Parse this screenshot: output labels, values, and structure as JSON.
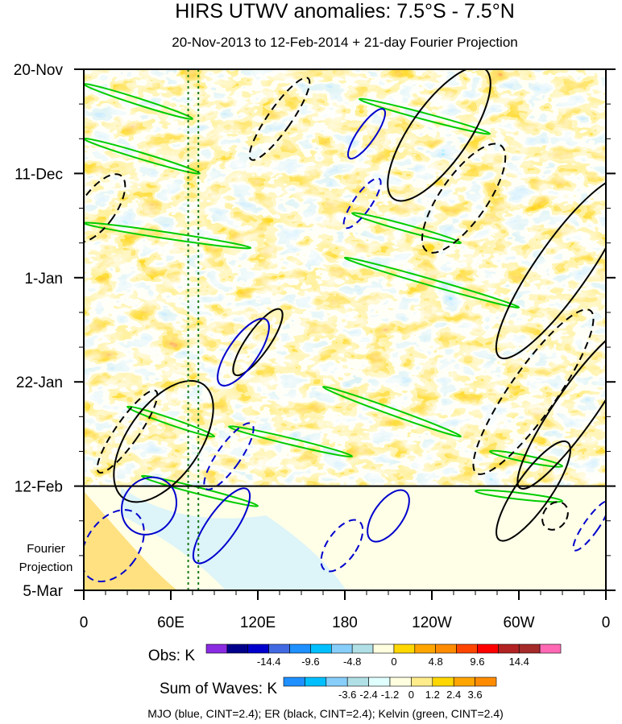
{
  "chart_data": {
    "type": "heatmap",
    "title": "HIRS UTWV anomalies: 7.5°S - 7.5°N",
    "subtitle": "20-Nov-2013 to 12-Feb-2014 + 21-day Fourier Projection",
    "x_tick_labels": [
      "0",
      "60E",
      "120E",
      "180",
      "120W",
      "60W",
      "0"
    ],
    "x_ticks_deg": [
      0,
      60,
      120,
      180,
      240,
      300,
      360
    ],
    "xlim_deg": [
      0,
      360
    ],
    "y_tick_labels": [
      "20-Nov",
      "11-Dec",
      "1-Jan",
      "22-Jan",
      "12-Feb",
      "5-Mar"
    ],
    "y_ticks_day": [
      0,
      21,
      42,
      63,
      84,
      105
    ],
    "ylim_day": [
      0,
      105
    ],
    "observation_end_day": 84,
    "projection_label_line1": "Fourier",
    "projection_label_line2": "Projection",
    "reference_longitudes_deg": [
      72,
      79
    ],
    "obs_colorbar": {
      "label": "Obs: K",
      "tick_labels": [
        "-14.4",
        "-9.6",
        "-4.8",
        "0",
        "4.8",
        "9.6",
        "14.4"
      ],
      "colors": [
        "#8a2be2",
        "#00008b",
        "#0000cd",
        "#4169e1",
        "#1e90ff",
        "#00bfff",
        "#87cefa",
        "#b0e0e6",
        "#ffffe0",
        "#ffd700",
        "#ffa500",
        "#ff8c00",
        "#ff4500",
        "#ff0000",
        "#b22222",
        "#a52a2a",
        "#ff69b4"
      ]
    },
    "waves_colorbar": {
      "label": "Sum of Waves: K",
      "tick_labels": [
        "-3.6",
        "-2.4",
        "-1.2",
        "0",
        "1.2",
        "2.4",
        "3.6"
      ],
      "colors": [
        "#1e90ff",
        "#00bfff",
        "#87cefa",
        "#b0e0e6",
        "#e0ffff",
        "#ffffe0",
        "#ffec8b",
        "#ffd700",
        "#ffa500",
        "#ff8c00"
      ]
    },
    "footer": "MJO (blue, CINT=2.4); ER (black, CINT=2.4); Kelvin (green, CINT=2.4)",
    "wave_colors": {
      "mjo": "#0000cd",
      "er": "#000000",
      "kelvin": "#00cc00"
    },
    "kelvin_bands": [
      {
        "lon": [
          0,
          75
        ],
        "day": [
          3,
          10
        ]
      },
      {
        "lon": [
          0,
          80
        ],
        "day": [
          14,
          21
        ]
      },
      {
        "lon": [
          0,
          115
        ],
        "day": [
          31,
          36
        ]
      },
      {
        "lon": [
          190,
          280
        ],
        "day": [
          6,
          13
        ]
      },
      {
        "lon": [
          185,
          260
        ],
        "day": [
          29,
          35
        ]
      },
      {
        "lon": [
          180,
          300
        ],
        "day": [
          38,
          48
        ]
      },
      {
        "lon": [
          165,
          260
        ],
        "day": [
          64,
          74
        ]
      },
      {
        "lon": [
          100,
          185
        ],
        "day": [
          72,
          78
        ]
      },
      {
        "lon": [
          30,
          90
        ],
        "day": [
          68,
          74
        ]
      },
      {
        "lon": [
          280,
          330
        ],
        "day": [
          77,
          80
        ]
      },
      {
        "lon": [
          40,
          120
        ],
        "day": [
          82,
          88
        ]
      },
      {
        "lon": [
          270,
          330
        ],
        "day": [
          85,
          87
        ]
      }
    ],
    "er_ellipses": [
      {
        "lon": 245,
        "day": 13,
        "rlon": 20,
        "rday": 16,
        "dashed": false
      },
      {
        "lon": 262,
        "day": 26,
        "rlon": 16,
        "rday": 13,
        "dashed": true
      },
      {
        "lon": 330,
        "day": 40,
        "rlon": 18,
        "rday": 22,
        "dashed": false
      },
      {
        "lon": 310,
        "day": 65,
        "rlon": 16,
        "rday": 20,
        "dashed": true
      },
      {
        "lon": 340,
        "day": 68,
        "rlon": 14,
        "rday": 20,
        "dashed": false
      },
      {
        "lon": 310,
        "day": 85,
        "rlon": 12,
        "rday": 12,
        "dashed": false
      },
      {
        "lon": 55,
        "day": 75,
        "rlon": 25,
        "rday": 14,
        "dashed": false
      },
      {
        "lon": 30,
        "day": 73,
        "rlon": 8,
        "rday": 10,
        "dashed": true
      },
      {
        "lon": 120,
        "day": 55,
        "rlon": 8,
        "rday": 8,
        "dashed": false
      },
      {
        "lon": 135,
        "day": 10,
        "rlon": 8,
        "rday": 10,
        "dashed": true
      },
      {
        "lon": 10,
        "day": 28,
        "rlon": 12,
        "rday": 8,
        "dashed": true
      },
      {
        "lon": 325,
        "day": 90,
        "rlon": 8,
        "rday": 3,
        "dashed": true
      }
    ],
    "mjo_ellipses": [
      {
        "lon": 45,
        "day": 88,
        "rlon": 18,
        "rday": 6,
        "dashed": false
      },
      {
        "lon": 95,
        "day": 92,
        "rlon": 10,
        "rday": 9,
        "dashed": false
      },
      {
        "lon": 110,
        "day": 57,
        "rlon": 10,
        "rday": 8,
        "dashed": false
      },
      {
        "lon": 100,
        "day": 78,
        "rlon": 8,
        "rday": 8,
        "dashed": true
      },
      {
        "lon": 210,
        "day": 90,
        "rlon": 10,
        "rday": 6,
        "dashed": false
      },
      {
        "lon": 195,
        "day": 13,
        "rlon": 6,
        "rday": 6,
        "dashed": false
      },
      {
        "lon": 192,
        "day": 27,
        "rlon": 6,
        "rday": 6,
        "dashed": true
      },
      {
        "lon": 20,
        "day": 96,
        "rlon": 18,
        "rday": 8,
        "dashed": true
      },
      {
        "lon": 178,
        "day": 96,
        "rlon": 10,
        "rday": 6,
        "dashed": true
      },
      {
        "lon": 350,
        "day": 92,
        "rlon": 5,
        "rday": 6,
        "dashed": true
      }
    ]
  }
}
